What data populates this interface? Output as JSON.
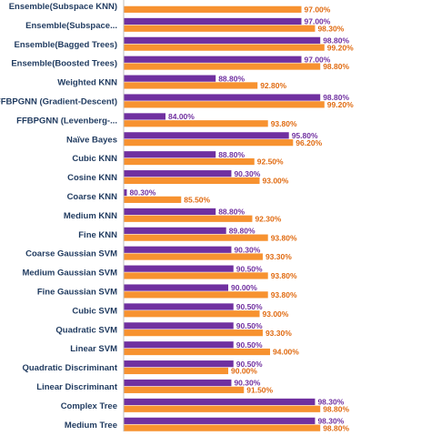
{
  "chart_data": {
    "type": "bar",
    "orientation": "horizontal",
    "categories": [
      "Ensemble(Subspace KNN)",
      "Ensemble(Subspace...",
      "Ensemble(Bagged Trees)",
      "Ensemble(Boosted Trees)",
      "Weighted KNN",
      "FFBPGNN (Gradient-Descent)",
      "FFBPGNN (Levenberg-...",
      "Naïve Bayes",
      "Cubic KNN",
      "Cosine KNN",
      "Coarse KNN",
      "Medium KNN",
      "Fine KNN",
      "Coarse Gaussian SVM",
      "Medium Gaussian SVM",
      "Fine Gaussian SVM",
      "Cubic SVM",
      "Quadratic SVM",
      "Linear SVM",
      "Quadratic Discriminant",
      "Linear Discriminant",
      "Complex Tree",
      "Medium Tree"
    ],
    "series": [
      {
        "color": "#7030a0",
        "values": [
          null,
          97.0,
          98.8,
          97.0,
          88.8,
          98.8,
          84.0,
          95.8,
          88.8,
          90.3,
          80.3,
          88.8,
          89.8,
          90.3,
          90.5,
          90.0,
          90.5,
          90.5,
          90.5,
          90.5,
          90.3,
          98.3,
          98.3
        ],
        "labels": [
          "",
          "97.00%",
          "98.80%",
          "97.00%",
          "88.80%",
          "98.80%",
          "84.00%",
          "95.80%",
          "88.80%",
          "90.30%",
          "80.30%",
          "88.80%",
          "89.80%",
          "90.30%",
          "90.50%",
          "90.00%",
          "90.50%",
          "90.50%",
          "90.50%",
          "90.50%",
          "90.30%",
          "98.30%",
          "98.30%"
        ]
      },
      {
        "color": "#f79230",
        "values": [
          97.0,
          98.3,
          99.2,
          98.8,
          92.8,
          99.2,
          93.8,
          96.2,
          92.5,
          93.0,
          85.5,
          92.3,
          93.8,
          93.3,
          93.8,
          93.8,
          93.0,
          93.3,
          94.0,
          90.0,
          91.5,
          98.8,
          98.8
        ],
        "labels": [
          "97.00%",
          "98.30%",
          "99.20%",
          "98.80%",
          "92.80%",
          "99.20%",
          "93.80%",
          "96.20%",
          "92.50%",
          "93.00%",
          "85.50%",
          "92.30%",
          "93.80%",
          "93.30%",
          "93.80%",
          "93.80%",
          "93.00%",
          "93.30%",
          "94.00%",
          "90.00%",
          "91.50%",
          "98.80%",
          "98.80%"
        ]
      }
    ],
    "xlim": [
      80,
      100
    ],
    "grid": false,
    "legend": "none"
  }
}
